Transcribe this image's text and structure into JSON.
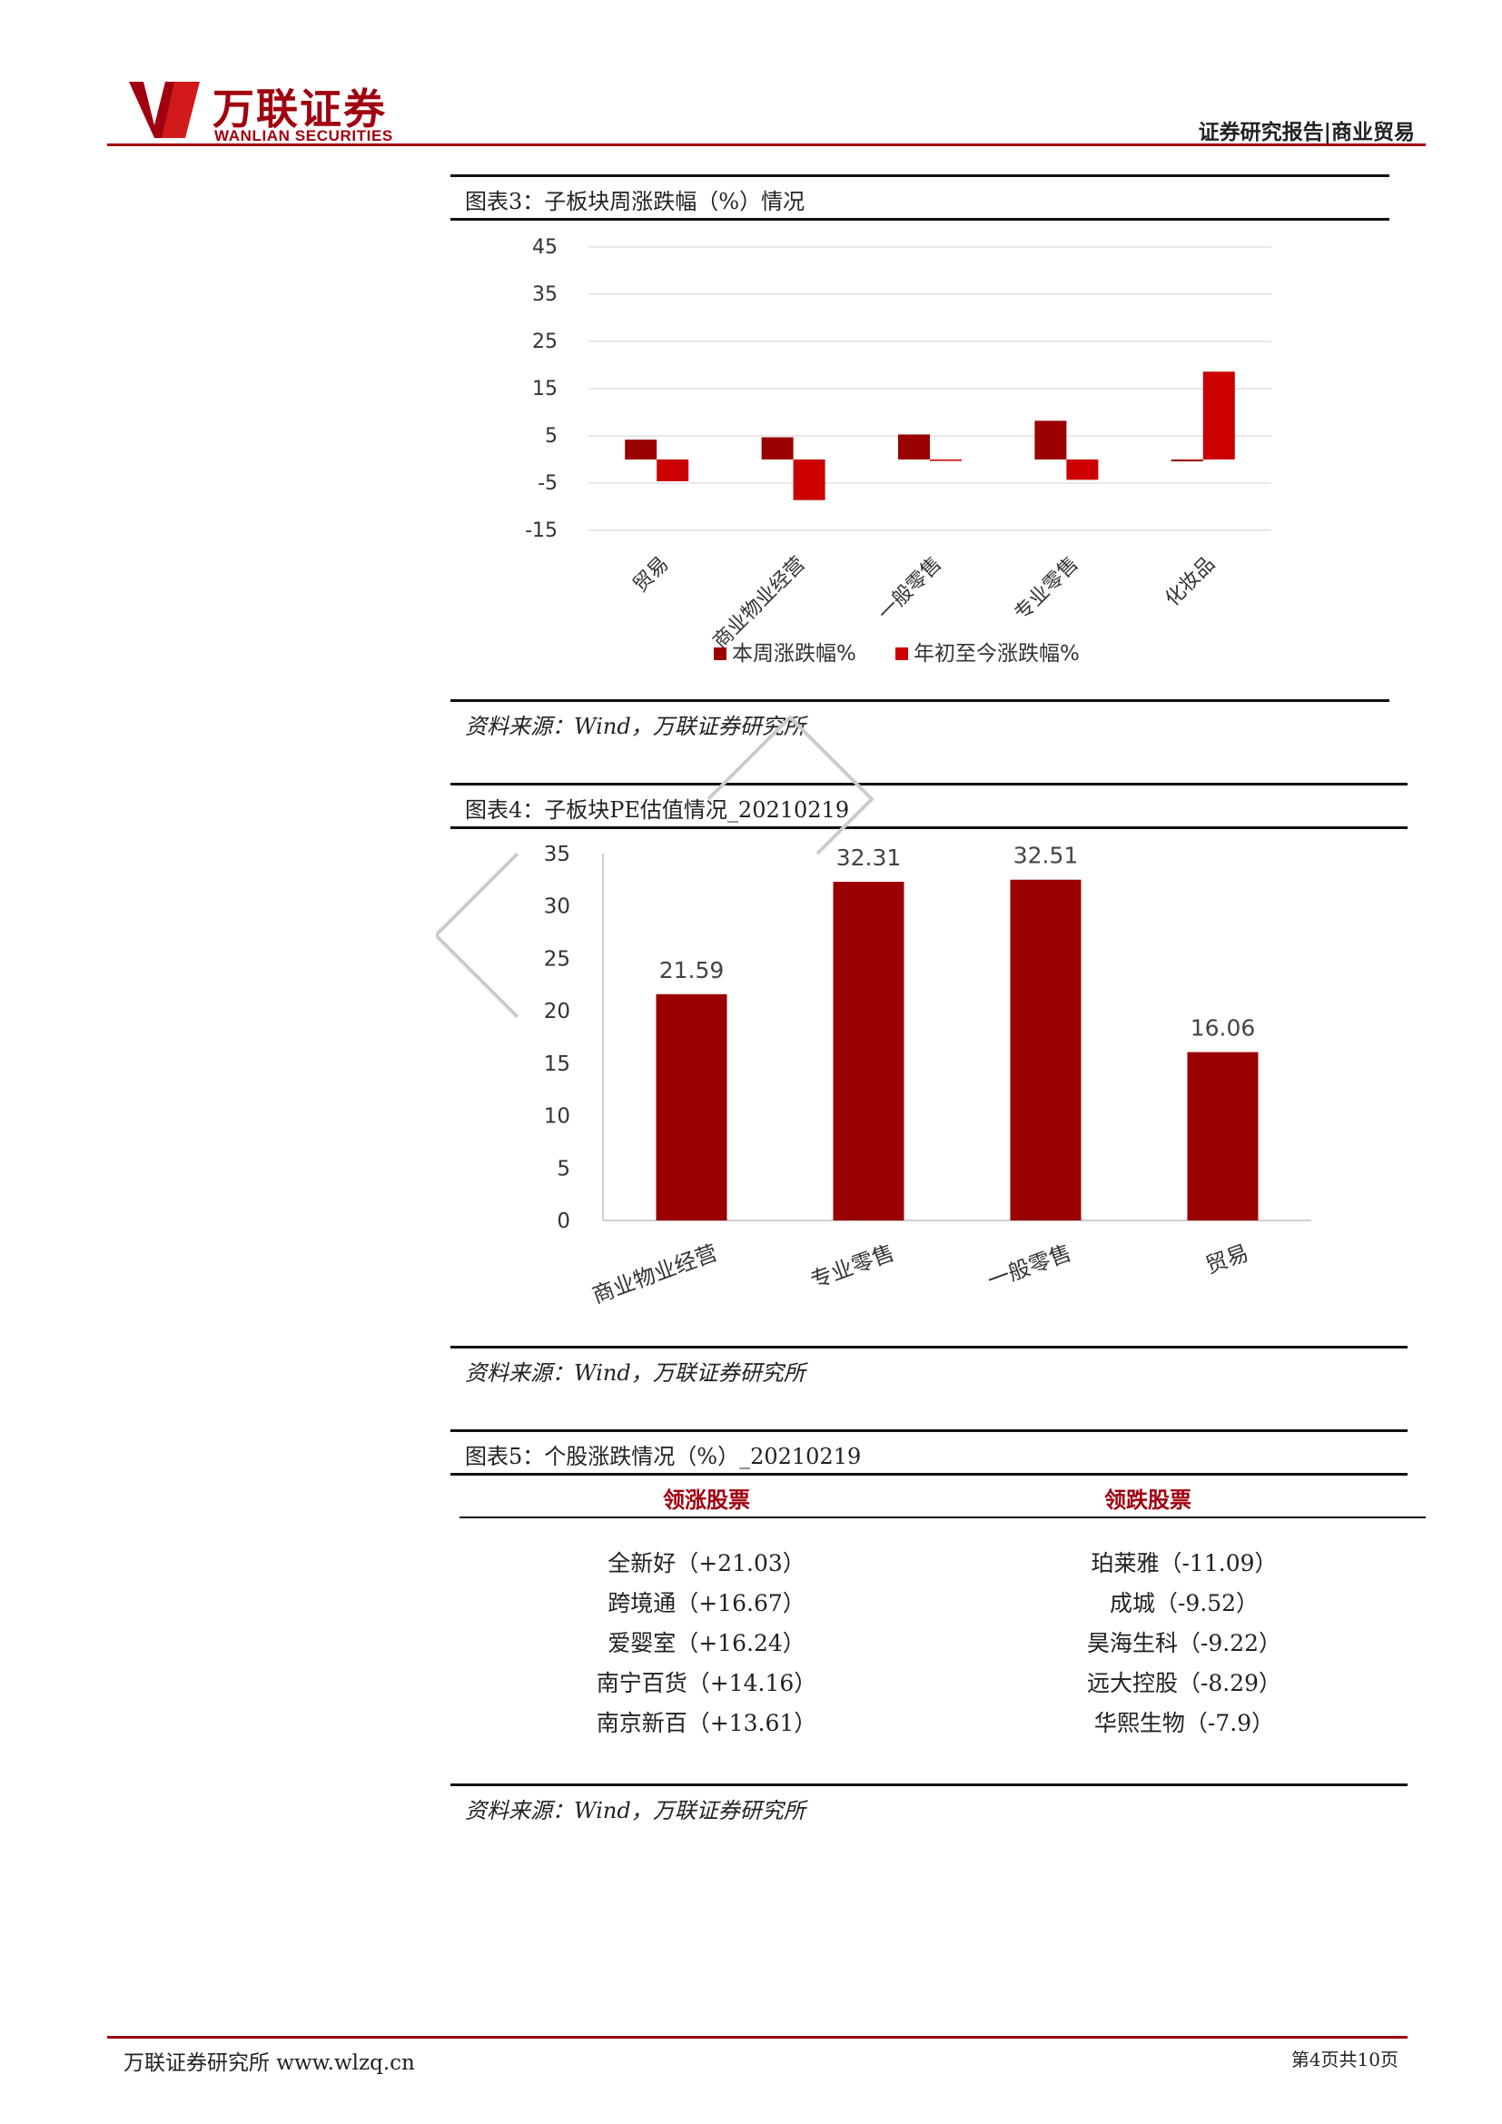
{
  "header": {
    "logo_cn": "万联证券",
    "logo_en": "WANLIAN SECURITIES",
    "report_type": "证券研究报告|商业贸易"
  },
  "figure3": {
    "title": "图表3：子板块周涨跌幅（%）情况",
    "source": "资料来源：Wind，万联证券研究所"
  },
  "figure4": {
    "title": "图表4：子板块PE估值情况_20210219",
    "source": "资料来源：Wind，万联证券研究所"
  },
  "figure5": {
    "title": "图表5：个股涨跌情况（%）_20210219",
    "source": "资料来源：Wind，万联证券研究所",
    "headers": [
      "领涨股票",
      "领跌股票"
    ],
    "gainers": [
      "全新好（+21.03）",
      "跨境通（+16.67）",
      "爱婴室（+16.24）",
      "南宁百货（+14.16）",
      "南京新百（+13.61）"
    ],
    "losers": [
      "珀莱雅（-11.09）",
      "成城（-9.52）",
      "昊海生科（-9.22）",
      "远大控股（-8.29）",
      "华熙生物（-7.9）"
    ]
  },
  "chart_data": [
    {
      "type": "bar",
      "categories": [
        "贸易",
        "商业物业经营",
        "一般零售",
        "专业零售",
        "化妆品"
      ],
      "series": [
        {
          "name": "本周涨跌幅%",
          "values": [
            4.2,
            4.7,
            5.3,
            8.2,
            -0.4
          ],
          "color": "#9b0000"
        },
        {
          "name": "年初至今涨跌幅%",
          "values": [
            -4.6,
            -8.6,
            -0.3,
            -4.3,
            18.6
          ],
          "color": "#cc0000"
        }
      ],
      "yticks": [
        45,
        35,
        25,
        15,
        5,
        -5,
        -15
      ],
      "ylim": [
        -15,
        45
      ],
      "grid": true,
      "legend": "bottom"
    },
    {
      "type": "bar",
      "categories": [
        "商业物业经营",
        "专业零售",
        "一般零售",
        "贸易"
      ],
      "values": [
        21.59,
        32.31,
        32.51,
        16.06
      ],
      "labels": [
        "21.59",
        "32.31",
        "32.51",
        "16.06"
      ],
      "yticks": [
        35,
        30,
        25,
        20,
        15,
        10,
        5,
        0
      ],
      "ylim": [
        0,
        35
      ],
      "grid": false,
      "color": "#9b0000"
    }
  ],
  "footer": {
    "left": "万联证券研究所 www.wlzq.cn",
    "right": "第4页共10页"
  }
}
